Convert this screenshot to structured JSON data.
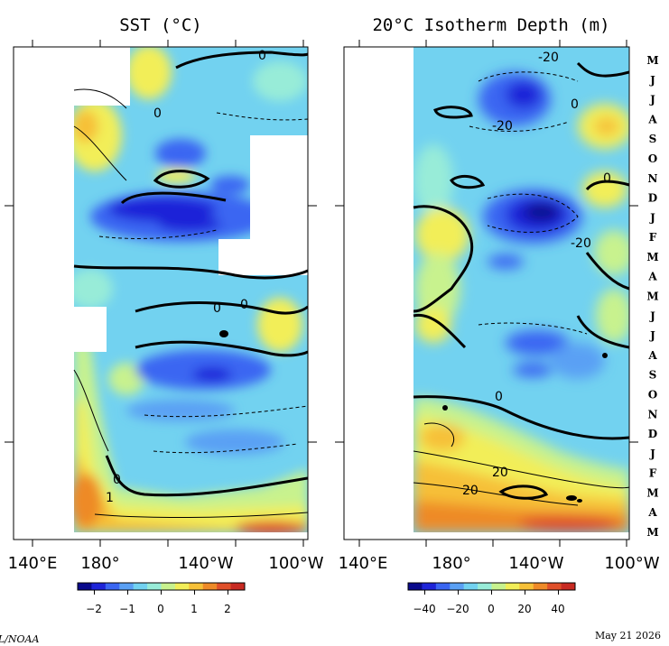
{
  "chart_data": [
    {
      "type": "heatmap",
      "title": "SST (°C)",
      "xlabel": "",
      "ylabel": "",
      "x_ticks": [
        "140°E",
        "180°",
        "140°W",
        "100°W"
      ],
      "colorbar": {
        "ticks": [
          "−2",
          "−1",
          "0",
          "1",
          "2"
        ],
        "range": [
          -2.5,
          2.5
        ],
        "colors": [
          "#0a0a8c",
          "#1e24d8",
          "#3a66f2",
          "#5aa0f4",
          "#72d2f0",
          "#98ecd8",
          "#c8f28e",
          "#f2ee58",
          "#f6c038",
          "#ee8a28",
          "#e0502a",
          "#c82a22"
        ]
      },
      "contour_labels": [
        "0",
        "0",
        "0",
        "1",
        "0",
        "0",
        "1"
      ]
    },
    {
      "type": "heatmap",
      "title": "20°C Isotherm Depth (m)",
      "xlabel": "",
      "ylabel": "",
      "x_ticks": [
        "140°E",
        "180°",
        "140°W",
        "100°W"
      ],
      "y_ticks": [
        "M",
        "J",
        "J",
        "A",
        "S",
        "O",
        "N",
        "D",
        "J",
        "F",
        "M",
        "A",
        "M",
        "J",
        "J",
        "A",
        "S",
        "O",
        "N",
        "D",
        "J",
        "F",
        "M",
        "A",
        "M"
      ],
      "colorbar": {
        "ticks": [
          "−40",
          "−20",
          "0",
          "20",
          "40"
        ],
        "range": [
          -50,
          50
        ],
        "colors": [
          "#0a0a8c",
          "#1e24d8",
          "#3a66f2",
          "#5aa0f4",
          "#72d2f0",
          "#98ecd8",
          "#c8f28e",
          "#f2ee58",
          "#f6c038",
          "#ee8a28",
          "#e0502a",
          "#c82a22"
        ]
      },
      "contour_labels": [
        "-20",
        "-20",
        "0",
        "-20",
        "0",
        "0",
        "20",
        "20"
      ]
    }
  ],
  "footer": {
    "credit": "TAO Project Office/PMEL/NOAA",
    "date": "May 21 2026"
  }
}
